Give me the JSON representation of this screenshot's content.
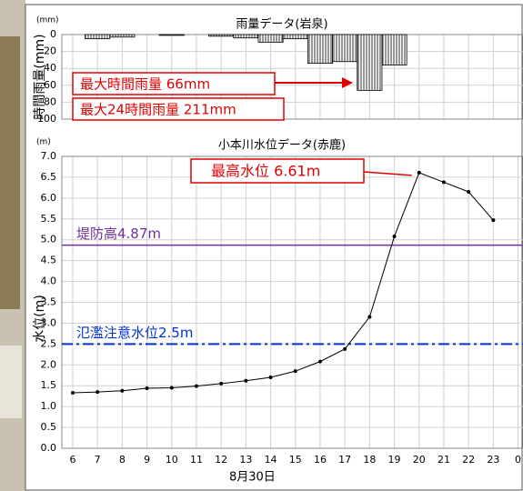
{
  "chart_data": [
    {
      "type": "bar",
      "title": "雨量データ(岩泉)",
      "y_label": "時間雨量(mm)",
      "y_unit": "(mm)",
      "x": [
        6,
        7,
        8,
        9,
        10,
        11,
        12,
        13,
        14,
        15,
        16,
        17,
        18,
        19,
        20,
        21,
        22,
        23
      ],
      "values": [
        0,
        5,
        3,
        0,
        1,
        0,
        2,
        4,
        9,
        5,
        34,
        32,
        66,
        36,
        0,
        0,
        0,
        0
      ],
      "color": "#000000",
      "ylim": [
        0,
        100
      ],
      "y_inverted": true,
      "yticks": [
        0,
        20,
        40,
        60,
        80,
        100
      ],
      "xlim": [
        5.56,
        24.2
      ],
      "grid": true,
      "annotations": [
        "最大時間雨量 66mm",
        "最大24時間雨量 211mm"
      ]
    },
    {
      "type": "line",
      "title": "小本川水位データ(赤鹿)",
      "y_label": "水位(m)",
      "y_unit": "(m)",
      "x_label": "8月30日",
      "x": [
        6,
        7,
        8,
        9,
        10,
        11,
        12,
        13,
        14,
        15,
        16,
        17,
        18,
        19,
        20,
        21,
        22,
        23
      ],
      "values": [
        1.33,
        1.35,
        1.38,
        1.44,
        1.45,
        1.49,
        1.55,
        1.62,
        1.7,
        1.85,
        2.08,
        2.38,
        3.15,
        5.08,
        6.61,
        6.38,
        6.15,
        5.47
      ],
      "color": "#000000",
      "ylim": [
        0,
        7
      ],
      "xlim": [
        5.56,
        24.2
      ],
      "grid": true,
      "yticks": [
        {
          "value": 0,
          "label": "0.0"
        },
        0.5,
        {
          "value": 1,
          "label": "1.0"
        },
        1.5,
        {
          "value": 2,
          "label": "2.0"
        },
        2.5,
        {
          "value": 3,
          "label": "3.0"
        },
        3.5,
        {
          "value": 4,
          "label": "4.0"
        },
        4.5,
        {
          "value": 5,
          "label": "5.0"
        },
        5.5,
        {
          "value": 6,
          "label": "6.0"
        },
        6.5,
        {
          "value": 7,
          "label": "7.0"
        }
      ],
      "xticks": [
        6,
        7,
        8,
        9,
        10,
        11,
        12,
        13,
        14,
        15,
        16,
        17,
        18,
        19,
        20,
        21,
        22,
        23,
        {
          "value": 24,
          "label": "0"
        }
      ],
      "hlines": [
        {
          "value": 4.87,
          "label": "堤防高4.87m",
          "color": "#7030a0",
          "style": "solid"
        },
        {
          "value": 2.5,
          "label": "氾濫注意水位2.5m",
          "color": "#0033cc",
          "style": "dashdot"
        }
      ],
      "annotations": [
        "最高水位 6.61m"
      ]
    }
  ]
}
